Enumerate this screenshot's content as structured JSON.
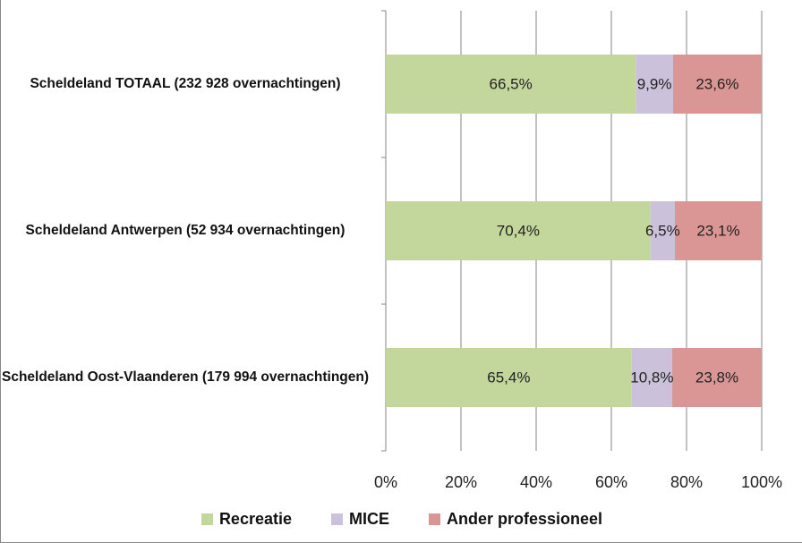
{
  "chart_data": {
    "type": "bar",
    "orientation": "horizontal",
    "stacked": true,
    "categories": [
      "Scheldeland TOTAAL (232 928 overnachtingen)",
      "Scheldeland Antwerpen (52 934 overnachtingen)",
      "Scheldeland Oost-Vlaanderen (179 994 overnachtingen)"
    ],
    "series": [
      {
        "name": "Recreatie",
        "color": "#c3d69b",
        "values": [
          66.5,
          70.4,
          65.4
        ],
        "value_labels": [
          "66,5%",
          "70,4%",
          "65,4%"
        ]
      },
      {
        "name": "MICE",
        "color": "#ccc1da",
        "values": [
          9.9,
          6.5,
          10.8
        ],
        "value_labels": [
          "9,9%",
          "6,5%",
          "10,8%"
        ]
      },
      {
        "name": "Ander professioneel",
        "color": "#d99694",
        "values": [
          23.6,
          23.1,
          23.8
        ],
        "value_labels": [
          "23,6%",
          "23,1%",
          "23,8%"
        ]
      }
    ],
    "xlim": [
      0,
      100
    ],
    "xticks": [
      {
        "value": 0,
        "label": "0%"
      },
      {
        "value": 20,
        "label": "20%"
      },
      {
        "value": 40,
        "label": "40%"
      },
      {
        "value": 60,
        "label": "60%"
      },
      {
        "value": 80,
        "label": "80%"
      },
      {
        "value": 100,
        "label": "100%"
      }
    ],
    "grid": true,
    "legend": "bottom"
  }
}
